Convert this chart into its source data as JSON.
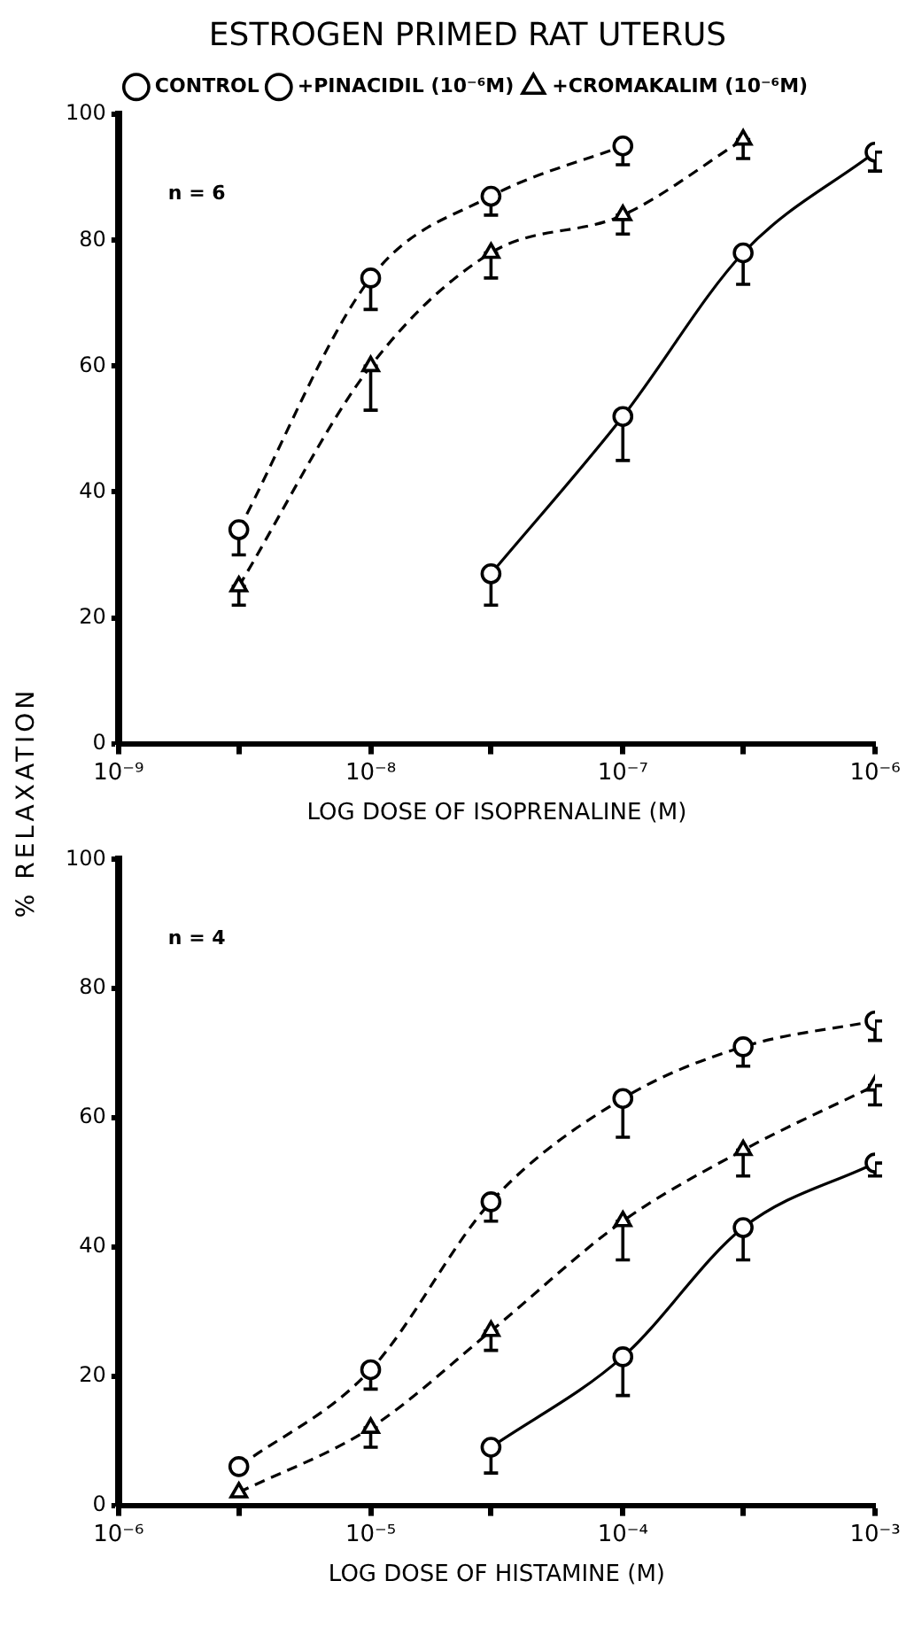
{
  "chart_data": [
    {
      "type": "line",
      "title": "ESTROGEN PRIMED RAT UTERUS",
      "xlabel": "LOG DOSE OF ISOPRENALINE (M)",
      "ylabel": "% RELAXATION",
      "log": "x",
      "xlim": [
        1e-09,
        1e-06
      ],
      "xticks": [
        {
          "value": 1e-09,
          "label": "10⁻⁹"
        },
        {
          "value": 3e-09,
          "label": null
        },
        {
          "value": 1e-08,
          "label": "10⁻⁸"
        },
        {
          "value": 3e-08,
          "label": null
        },
        {
          "value": 1e-07,
          "label": "10⁻⁷"
        },
        {
          "value": 3e-07,
          "label": null
        },
        {
          "value": 1e-06,
          "label": "10⁻⁶"
        }
      ],
      "ylim": [
        0,
        100
      ],
      "yticks": [
        0,
        20,
        40,
        60,
        80,
        100
      ],
      "grid": false,
      "legend": "top",
      "annotations": [
        "n = 6"
      ],
      "series": [
        {
          "name": "CONTROL",
          "color": "#000000",
          "marker": "circle",
          "line_style": "solid",
          "x": [
            3e-08,
            1e-07,
            3e-07,
            1e-06
          ],
          "values": [
            27,
            52,
            78,
            94
          ],
          "errors": [
            [
              22,
              27
            ],
            [
              45,
              52
            ],
            [
              73,
              78
            ],
            [
              91,
              94
            ]
          ]
        },
        {
          "name": "+PINACIDIL (10⁻⁶M)",
          "color": "#000000",
          "marker": "circle",
          "line_style": "dashed",
          "x": [
            3e-09,
            1e-08,
            3e-08,
            1e-07
          ],
          "values": [
            34,
            74,
            87,
            95
          ],
          "errors": [
            [
              30,
              34
            ],
            [
              69,
              74
            ],
            [
              84,
              87
            ],
            [
              92,
              95
            ]
          ]
        },
        {
          "name": "+CROMAKALIM (10⁻⁶M)",
          "color": "#000000",
          "marker": "triangle",
          "line_style": "dashed",
          "x": [
            3e-09,
            1e-08,
            3e-08,
            1e-07,
            3e-07
          ],
          "values": [
            25,
            60,
            78,
            84,
            96
          ],
          "errors": [
            [
              22,
              25
            ],
            [
              53,
              60
            ],
            [
              74,
              78
            ],
            [
              81,
              84
            ],
            [
              93,
              96
            ]
          ]
        }
      ]
    },
    {
      "type": "line",
      "xlabel": "LOG DOSE OF HISTAMINE (M)",
      "log": "x",
      "xlim": [
        1e-06,
        0.001
      ],
      "xticks": [
        {
          "value": 1e-06,
          "label": "10⁻⁶"
        },
        {
          "value": 3e-06,
          "label": null
        },
        {
          "value": 1e-05,
          "label": "10⁻⁵"
        },
        {
          "value": 3e-05,
          "label": null
        },
        {
          "value": 0.0001,
          "label": "10⁻⁴"
        },
        {
          "value": 0.0003,
          "label": null
        },
        {
          "value": 0.001,
          "label": "10⁻³"
        }
      ],
      "ylim": [
        0,
        100
      ],
      "yticks": [
        0,
        20,
        40,
        60,
        80,
        100
      ],
      "grid": false,
      "annotations": [
        "n = 4"
      ],
      "series": [
        {
          "color": "#000000",
          "marker": "circle",
          "line_style": "solid",
          "x": [
            3e-05,
            0.0001,
            0.0003,
            0.001
          ],
          "values": [
            9,
            23,
            43,
            53
          ],
          "errors": [
            [
              5,
              9
            ],
            [
              17,
              23
            ],
            [
              38,
              43
            ],
            [
              51,
              53
            ]
          ]
        },
        {
          "color": "#000000",
          "marker": "circle",
          "line_style": "dashed",
          "x": [
            3e-06,
            1e-05,
            3e-05,
            0.0001,
            0.0003,
            0.001
          ],
          "values": [
            6,
            21,
            47,
            63,
            71,
            75
          ],
          "errors": [
            null,
            [
              18,
              21
            ],
            [
              44,
              47
            ],
            [
              57,
              63
            ],
            [
              68,
              71
            ],
            [
              72,
              75
            ]
          ]
        },
        {
          "color": "#000000",
          "marker": "triangle",
          "line_style": "dashed",
          "x": [
            3e-06,
            1e-05,
            3e-05,
            0.0001,
            0.0003,
            0.001
          ],
          "values": [
            2,
            12,
            27,
            44,
            55,
            65
          ],
          "errors": [
            null,
            [
              9,
              12
            ],
            [
              24,
              27
            ],
            [
              38,
              44
            ],
            [
              51,
              55
            ],
            [
              62,
              65
            ]
          ]
        }
      ]
    }
  ]
}
